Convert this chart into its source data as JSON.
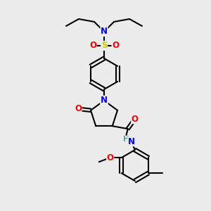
{
  "bg_color": "#ececec",
  "atom_colors": {
    "N": "#0000FF",
    "O": "#FF0000",
    "S": "#CCCC00",
    "H": "#5F9EA0",
    "C": "#000000"
  },
  "bond_color": "#000000",
  "bond_width": 1.5,
  "font_size": 8.5
}
